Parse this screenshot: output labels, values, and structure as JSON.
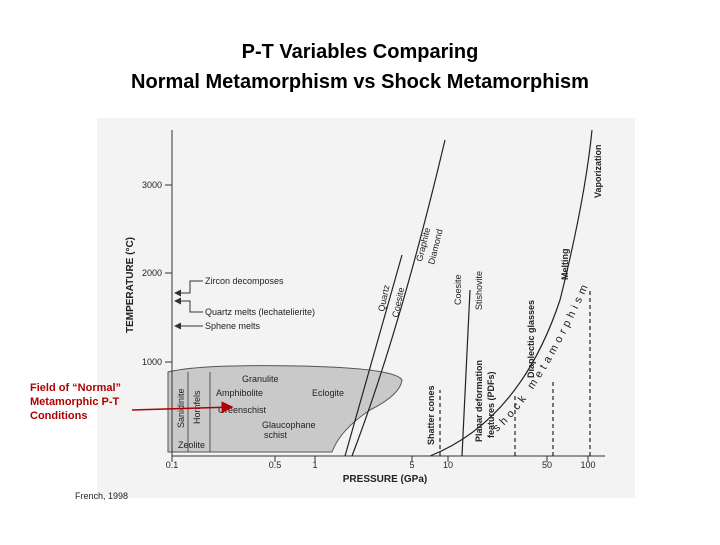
{
  "title": [
    "P-T Variables Comparing",
    "Normal Metamorphism vs Shock Metamorphism"
  ],
  "figure": {
    "y_axis_label": "TEMPERATURE (°C)",
    "x_axis_label": "PRESSURE (GPa)",
    "y_ticks": [
      "3000",
      "2000",
      "1000"
    ],
    "x_ticks": [
      "0.1",
      "0.5",
      "1",
      "5",
      "10",
      "50",
      "100"
    ],
    "temperature_markers": [
      "Zircon decomposes",
      "Quartz melts (lechatelierite)",
      "Sphene melts"
    ],
    "facies": [
      "Granulite",
      "Amphibolite",
      "Eclogite",
      "Greenschist",
      "Glaucophane",
      "schist",
      "Zeolite",
      "Sanidinite",
      "Hornfels"
    ],
    "boundaries": [
      "Quartz",
      "Coesite",
      "Graphite",
      "Diamond",
      "Coesite",
      "Stishovite"
    ],
    "shock_effects": [
      "Shatter cones",
      "Planar deformation",
      "features (PDFs)",
      "Diaplectic glasses",
      "Melting",
      "Vaporization"
    ],
    "shock_label": "shock metamorphism"
  },
  "annotation": [
    "Field of “Normal”",
    "Metamorphic P-T",
    "Conditions"
  ],
  "credit": "French, 1998"
}
